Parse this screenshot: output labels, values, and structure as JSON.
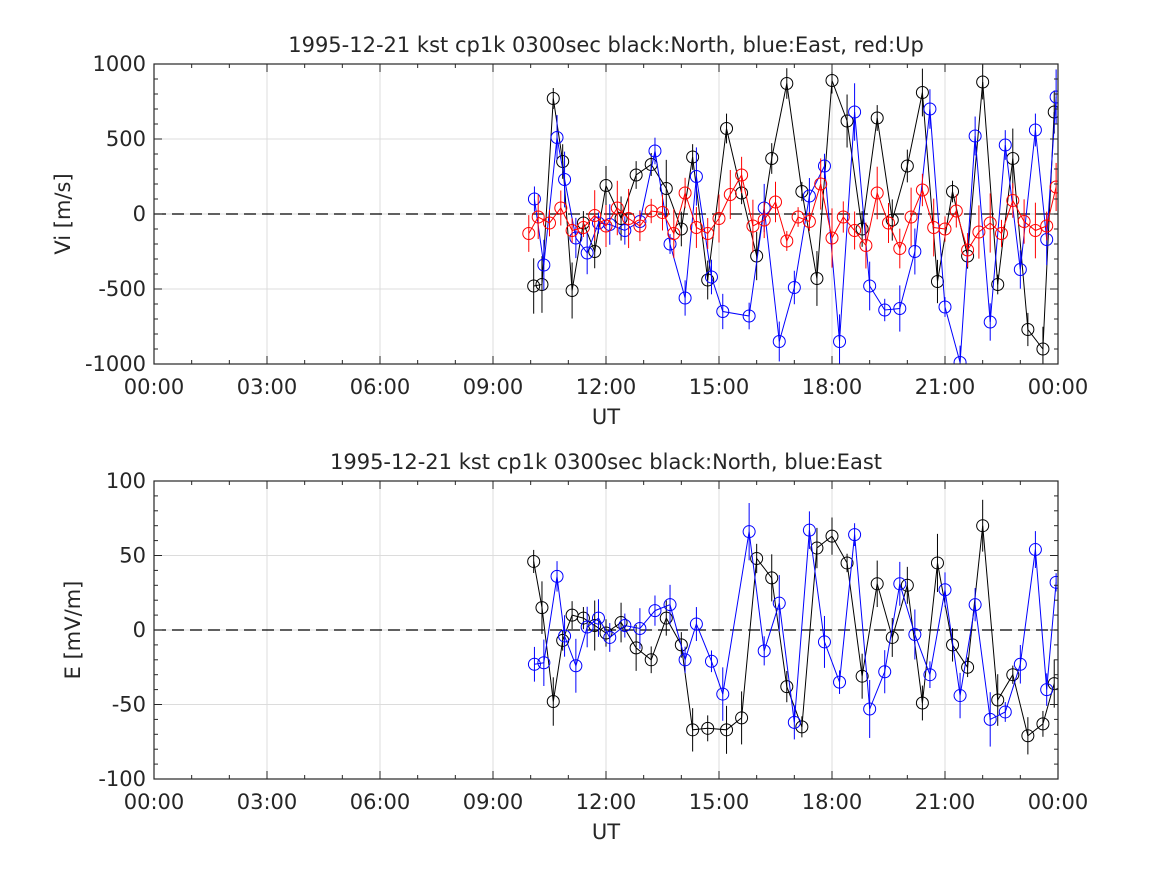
{
  "chart_data": [
    {
      "type": "line",
      "title": "1995-12-21 kst cp1k 0300sec black:North, blue:East, red:Up",
      "xlabel": "UT",
      "ylabel": "Vi [m/s]",
      "xlim": [
        0,
        24
      ],
      "ylim": [
        -1000,
        1000
      ],
      "x_tick_labels": [
        "00:00",
        "03:00",
        "06:00",
        "09:00",
        "12:00",
        "15:00",
        "18:00",
        "21:00",
        "00:00"
      ],
      "y_tick_values": [
        1000,
        500,
        0,
        -500,
        -1000
      ],
      "y_tick_labels": [
        "1000",
        "500",
        "0",
        "-500",
        "-1000"
      ],
      "grid": true,
      "zero_line": "dashed",
      "series": [
        {
          "name": "North",
          "color": "#000000",
          "x": [
            10.08,
            10.3,
            10.6,
            10.85,
            11.1,
            11.4,
            11.7,
            12.0,
            12.4,
            12.8,
            13.2,
            13.6,
            14.0,
            14.3,
            14.7,
            15.2,
            15.6,
            16.0,
            16.4,
            16.8,
            17.2,
            17.6,
            18.0,
            18.4,
            18.8,
            19.2,
            19.6,
            20.0,
            20.4,
            20.8,
            21.2,
            21.6,
            22.0,
            22.4,
            22.8,
            23.2,
            23.6,
            23.9
          ],
          "y": [
            -480,
            -470,
            770,
            350,
            -510,
            -60,
            -250,
            190,
            -30,
            260,
            330,
            170,
            -100,
            380,
            -440,
            570,
            140,
            -280,
            370,
            870,
            150,
            -430,
            890,
            620,
            -100,
            640,
            -40,
            320,
            810,
            -450,
            150,
            -280,
            880,
            -470,
            370,
            -770,
            -900,
            680
          ]
        },
        {
          "name": "East",
          "color": "#0000ff",
          "x": [
            10.1,
            10.35,
            10.7,
            10.9,
            11.2,
            11.5,
            11.8,
            12.1,
            12.5,
            12.9,
            13.3,
            13.7,
            14.1,
            14.4,
            14.8,
            15.1,
            15.8,
            16.2,
            16.6,
            17.0,
            17.4,
            17.8,
            18.2,
            18.6,
            19.0,
            19.4,
            19.8,
            20.2,
            20.6,
            21.0,
            21.4,
            21.8,
            22.2,
            22.6,
            23.0,
            23.4,
            23.7,
            23.95
          ],
          "y": [
            100,
            -340,
            510,
            230,
            -160,
            -260,
            -60,
            -70,
            -110,
            -50,
            420,
            -200,
            -560,
            250,
            -420,
            -650,
            -680,
            40,
            -850,
            -490,
            120,
            320,
            -850,
            680,
            -480,
            -640,
            -630,
            -250,
            700,
            -620,
            -990,
            520,
            -720,
            460,
            -370,
            560,
            -170,
            780
          ]
        },
        {
          "name": "Up",
          "color": "#ff0000",
          "x": [
            9.95,
            10.2,
            10.5,
            10.8,
            11.1,
            11.4,
            11.7,
            12.0,
            12.3,
            12.6,
            12.9,
            13.2,
            13.5,
            13.8,
            14.1,
            14.4,
            14.7,
            15.0,
            15.3,
            15.6,
            15.9,
            16.2,
            16.5,
            16.8,
            17.1,
            17.4,
            17.7,
            18.0,
            18.3,
            18.6,
            18.9,
            19.2,
            19.5,
            19.8,
            20.1,
            20.4,
            20.7,
            21.0,
            21.3,
            21.6,
            21.9,
            22.2,
            22.5,
            22.8,
            23.1,
            23.4,
            23.7,
            23.95
          ],
          "y": [
            -130,
            -20,
            -60,
            40,
            -110,
            -90,
            -10,
            -80,
            40,
            -30,
            -80,
            20,
            10,
            -130,
            140,
            -90,
            -130,
            -30,
            130,
            260,
            -80,
            -40,
            80,
            -180,
            -20,
            -50,
            200,
            -160,
            -20,
            -110,
            -210,
            140,
            -60,
            -230,
            -20,
            160,
            -90,
            -100,
            20,
            -240,
            -120,
            -60,
            -130,
            90,
            -50,
            -110,
            -80,
            180
          ]
        }
      ]
    },
    {
      "type": "line",
      "title": "1995-12-21 kst cp1k 0300sec black:North, blue:East",
      "xlabel": "UT",
      "ylabel": "E [mV/m]",
      "xlim": [
        0,
        24
      ],
      "ylim": [
        -100,
        100
      ],
      "x_tick_labels": [
        "00:00",
        "03:00",
        "06:00",
        "09:00",
        "12:00",
        "15:00",
        "18:00",
        "21:00",
        "00:00"
      ],
      "y_tick_values": [
        100,
        50,
        0,
        -50,
        -100
      ],
      "y_tick_labels": [
        "100",
        "50",
        "0",
        "-50",
        "-100"
      ],
      "grid": true,
      "zero_line": "dashed",
      "series": [
        {
          "name": "North",
          "color": "#000000",
          "x": [
            10.08,
            10.3,
            10.6,
            10.85,
            11.1,
            11.4,
            11.7,
            12.0,
            12.4,
            12.8,
            13.2,
            13.6,
            14.0,
            14.3,
            14.7,
            15.2,
            15.6,
            16.0,
            16.4,
            16.8,
            17.2,
            17.6,
            18.0,
            18.4,
            18.8,
            19.2,
            19.6,
            20.0,
            20.4,
            20.8,
            21.2,
            21.6,
            22.0,
            22.4,
            22.8,
            23.2,
            23.6,
            23.9
          ],
          "y": [
            46,
            15,
            -48,
            -7,
            10,
            8,
            3,
            -2,
            5,
            -12,
            -20,
            8,
            -10,
            -67,
            -66,
            -67,
            -59,
            48,
            35,
            -38,
            -65,
            55,
            63,
            45,
            -31,
            31,
            -5,
            30,
            -49,
            45,
            -10,
            -25,
            70,
            -47,
            -30,
            -71,
            -63,
            -36
          ]
        },
        {
          "name": "East",
          "color": "#0000ff",
          "x": [
            10.1,
            10.35,
            10.7,
            10.9,
            11.2,
            11.5,
            11.8,
            12.1,
            12.5,
            12.9,
            13.3,
            13.7,
            14.1,
            14.4,
            14.8,
            15.1,
            15.8,
            16.2,
            16.6,
            17.0,
            17.4,
            17.8,
            18.2,
            18.6,
            19.0,
            19.4,
            19.8,
            20.2,
            20.6,
            21.0,
            21.4,
            21.8,
            22.2,
            22.6,
            23.0,
            23.4,
            23.7,
            23.95
          ],
          "y": [
            -23,
            -22,
            36,
            -4,
            -24,
            2,
            8,
            -5,
            3,
            1,
            13,
            17,
            -20,
            4,
            -21,
            -43,
            66,
            -14,
            18,
            -62,
            67,
            -8,
            -35,
            64,
            -53,
            -28,
            31,
            -3,
            -30,
            27,
            -44,
            17,
            -60,
            -55,
            -23,
            54,
            -40,
            32
          ]
        }
      ]
    }
  ]
}
